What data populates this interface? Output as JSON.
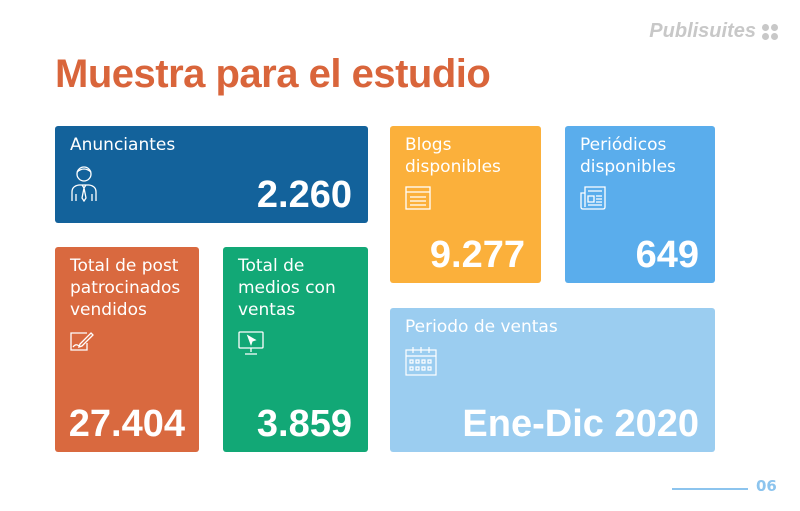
{
  "logo": {
    "text": "Publisuites"
  },
  "title": "Muestra para el estudio",
  "cards": [
    {
      "label": "Anunciantes",
      "value": "2.260",
      "icon": "businessman-icon",
      "color": "#13629b"
    },
    {
      "label": "Blogs disponibles",
      "value": "9.277",
      "icon": "browser-window-icon",
      "color": "#fbb03b"
    },
    {
      "label": "Periódicos disponibles",
      "value": "649",
      "icon": "newspaper-icon",
      "color": "#5aadec"
    },
    {
      "label": "Total de post patrocinados vendidos",
      "value": "27.404",
      "icon": "pen-writing-icon",
      "color": "#d9693f"
    },
    {
      "label": "Total de medios con ventas",
      "value": "3.859",
      "icon": "monitor-cursor-icon",
      "color": "#12a876"
    },
    {
      "label": "Periodo de ventas",
      "value": "Ene-Dic 2020",
      "icon": "calendar-icon",
      "color": "#9bcdf0"
    }
  ],
  "footer": {
    "page": "06"
  }
}
